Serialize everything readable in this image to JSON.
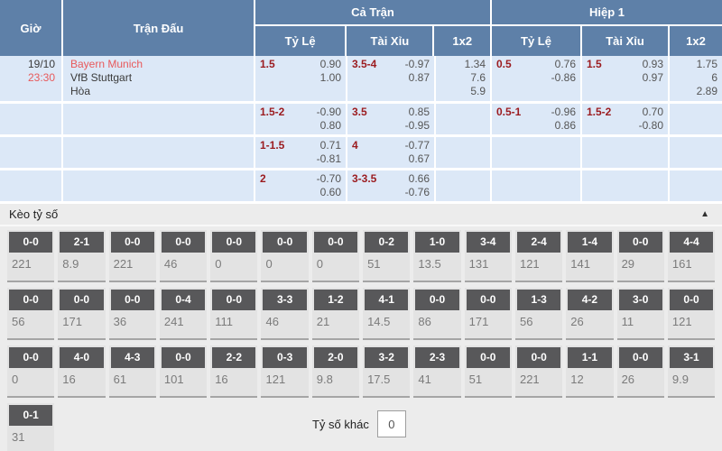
{
  "table": {
    "headers": {
      "time": "Giờ",
      "match": "Trận Đấu",
      "full_time": "Cả Trận",
      "first_half": "Hiệp 1",
      "handicap": "Tỷ Lệ",
      "over_under": "Tài Xỉu",
      "one_x_two": "1x2"
    },
    "rows": [
      {
        "date": "19/10",
        "time": "23:30",
        "home": "Bayern Munich",
        "away": "VfB Stuttgart",
        "draw": "Hòa",
        "ft_hdp": {
          "line": "1.5",
          "odds": [
            "0.90",
            "1.00"
          ]
        },
        "ft_ou": {
          "line": "3.5-4",
          "odds": [
            "-0.97",
            "0.87"
          ]
        },
        "ft_1x2": [
          "1.34",
          "7.6",
          "5.9"
        ],
        "h1_hdp": {
          "line": "0.5",
          "odds": [
            "0.76",
            "-0.86"
          ]
        },
        "h1_ou": {
          "line": "1.5",
          "odds": [
            "0.93",
            "0.97"
          ]
        },
        "h1_1x2": [
          "1.75",
          "6",
          "2.89"
        ]
      },
      {
        "ft_hdp": {
          "line": "1.5-2",
          "odds": [
            "-0.90",
            "0.80"
          ]
        },
        "ft_ou": {
          "line": "3.5",
          "odds": [
            "0.85",
            "-0.95"
          ]
        },
        "h1_hdp": {
          "line": "0.5-1",
          "odds": [
            "-0.96",
            "0.86"
          ]
        },
        "h1_ou": {
          "line": "1.5-2",
          "odds": [
            "0.70",
            "-0.80"
          ]
        }
      },
      {
        "ft_hdp": {
          "line": "1-1.5",
          "odds": [
            "0.71",
            "-0.81"
          ]
        },
        "ft_ou": {
          "line": "4",
          "odds": [
            "-0.77",
            "0.67"
          ]
        }
      },
      {
        "ft_hdp": {
          "line": "2",
          "odds": [
            "-0.70",
            "0.60"
          ]
        },
        "ft_ou": {
          "line": "3-3.5",
          "odds": [
            "0.66",
            "-0.76"
          ]
        }
      }
    ]
  },
  "score_section": {
    "title": "Kèo tỷ số",
    "collapse_icon": "triangle-up",
    "rows": [
      [
        {
          "score": "0-0",
          "odds": "221"
        },
        {
          "score": "2-1",
          "odds": "8.9"
        },
        {
          "score": "0-0",
          "odds": "221"
        },
        {
          "score": "0-0",
          "odds": "46"
        },
        {
          "score": "0-0",
          "odds": "0"
        },
        {
          "score": "0-0",
          "odds": "0"
        },
        {
          "score": "0-0",
          "odds": "0"
        },
        {
          "score": "0-2",
          "odds": "51"
        },
        {
          "score": "1-0",
          "odds": "13.5"
        },
        {
          "score": "3-4",
          "odds": "131"
        },
        {
          "score": "2-4",
          "odds": "121"
        },
        {
          "score": "1-4",
          "odds": "141"
        },
        {
          "score": "0-0",
          "odds": "29"
        },
        {
          "score": "4-4",
          "odds": "161"
        }
      ],
      [
        {
          "score": "0-0",
          "odds": "56"
        },
        {
          "score": "0-0",
          "odds": "171"
        },
        {
          "score": "0-0",
          "odds": "36"
        },
        {
          "score": "0-4",
          "odds": "241"
        },
        {
          "score": "0-0",
          "odds": "111"
        },
        {
          "score": "3-3",
          "odds": "46"
        },
        {
          "score": "1-2",
          "odds": "21"
        },
        {
          "score": "4-1",
          "odds": "14.5"
        },
        {
          "score": "0-0",
          "odds": "86"
        },
        {
          "score": "0-0",
          "odds": "171"
        },
        {
          "score": "1-3",
          "odds": "56"
        },
        {
          "score": "4-2",
          "odds": "26"
        },
        {
          "score": "3-0",
          "odds": "11"
        },
        {
          "score": "0-0",
          "odds": "121"
        }
      ],
      [
        {
          "score": "0-0",
          "odds": "0"
        },
        {
          "score": "4-0",
          "odds": "16"
        },
        {
          "score": "4-3",
          "odds": "61"
        },
        {
          "score": "0-0",
          "odds": "101"
        },
        {
          "score": "2-2",
          "odds": "16"
        },
        {
          "score": "0-3",
          "odds": "121"
        },
        {
          "score": "2-0",
          "odds": "9.8"
        },
        {
          "score": "3-2",
          "odds": "17.5"
        },
        {
          "score": "2-3",
          "odds": "41"
        },
        {
          "score": "0-0",
          "odds": "51"
        },
        {
          "score": "0-0",
          "odds": "221"
        },
        {
          "score": "1-1",
          "odds": "12"
        },
        {
          "score": "0-0",
          "odds": "26"
        },
        {
          "score": "3-1",
          "odds": "9.9"
        }
      ],
      [
        {
          "score": "0-1",
          "odds": "31"
        }
      ]
    ],
    "other": {
      "label": "Tỷ số khác",
      "value": "0"
    }
  },
  "colors": {
    "header_bg": "#5e80a8",
    "row_bg": "#dce8f7",
    "accent_red": "#e8595b",
    "handicap_maroon": "#9b1b1f",
    "score_button_bg": "#58585a",
    "section_bg": "#ececec"
  }
}
